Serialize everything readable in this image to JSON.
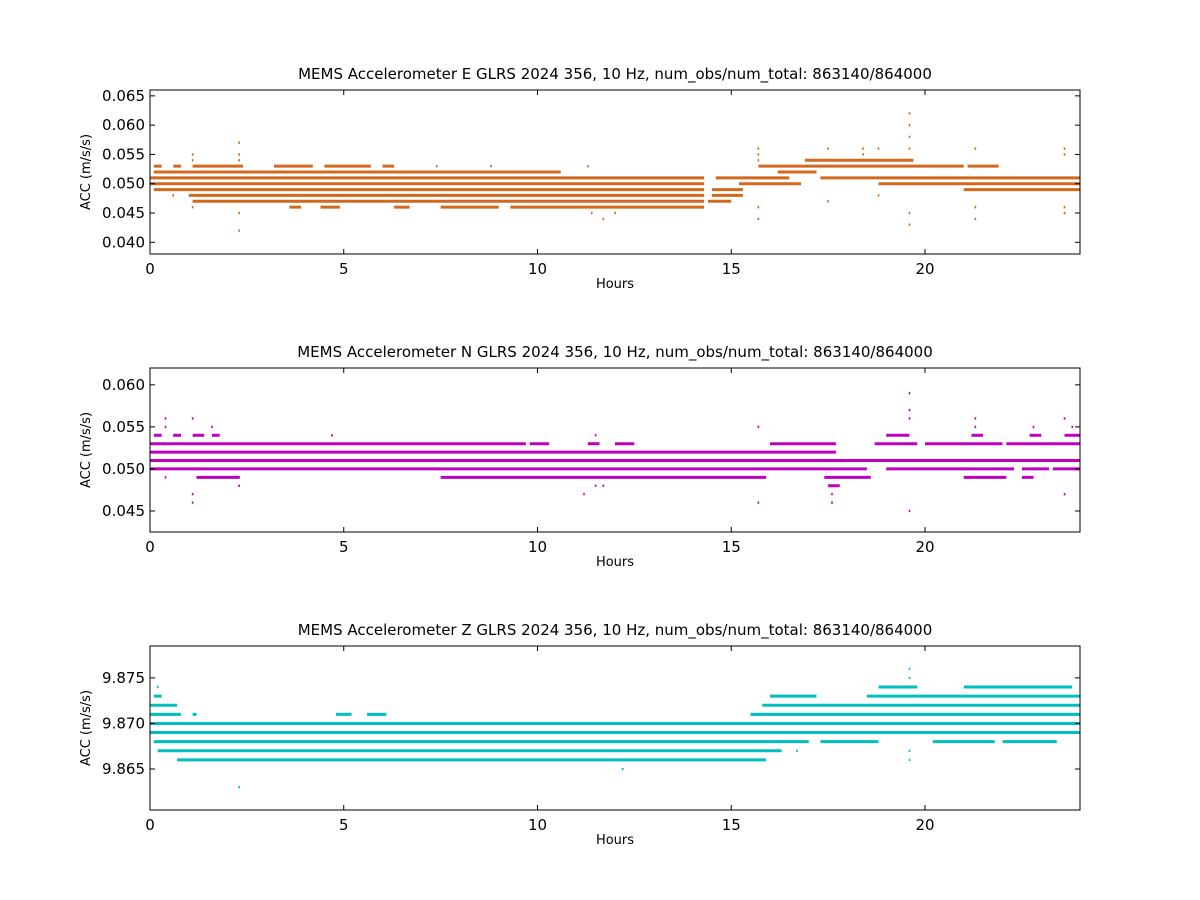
{
  "chart_data": [
    {
      "type": "scatter",
      "title": "MEMS Accelerometer E GLRS 2024 356, 10 Hz, num_obs/num_total: 863140/864000",
      "xlabel": "Hours",
      "ylabel": "ACC (m/s/s)",
      "xlim": [
        0,
        24
      ],
      "ylim": [
        0.038,
        0.066
      ],
      "xticks": [
        0,
        5,
        10,
        15,
        20
      ],
      "xtick_labels": [
        "0",
        "5",
        "10",
        "15",
        "20"
      ],
      "yticks": [
        0.04,
        0.045,
        0.05,
        0.055,
        0.06,
        0.065
      ],
      "ytick_labels": [
        "0.040",
        "0.045",
        "0.050",
        "0.055",
        "0.060",
        "0.065"
      ],
      "color": "#d2691e",
      "grid": false,
      "levels": [
        {
          "y": 0.053,
          "segments": [
            [
              0.1,
              0.3
            ],
            [
              0.6,
              0.8
            ],
            [
              1.1,
              2.4
            ],
            [
              3.2,
              4.2
            ],
            [
              4.5,
              5.7
            ],
            [
              6.0,
              6.3
            ]
          ]
        },
        {
          "y": 0.052,
          "segments": [
            [
              0.1,
              10.6
            ],
            [
              16.2,
              17.2
            ]
          ]
        },
        {
          "y": 0.051,
          "segments": [
            [
              0.0,
              14.3
            ],
            [
              14.6,
              16.5
            ],
            [
              17.3,
              24.0
            ]
          ]
        },
        {
          "y": 0.05,
          "segments": [
            [
              0.0,
              14.3
            ],
            [
              15.2,
              16.8
            ],
            [
              18.8,
              24.0
            ]
          ]
        },
        {
          "y": 0.049,
          "segments": [
            [
              0.1,
              14.3
            ],
            [
              14.5,
              15.3
            ],
            [
              21.0,
              24.0
            ]
          ]
        },
        {
          "y": 0.048,
          "segments": [
            [
              1.0,
              14.3
            ],
            [
              14.5,
              15.3
            ]
          ]
        },
        {
          "y": 0.047,
          "segments": [
            [
              1.1,
              14.3
            ],
            [
              14.4,
              15.0
            ]
          ]
        },
        {
          "y": 0.046,
          "segments": [
            [
              3.6,
              3.9
            ],
            [
              4.4,
              4.9
            ],
            [
              6.3,
              6.7
            ],
            [
              7.5,
              9.0
            ],
            [
              9.3,
              14.3
            ]
          ]
        },
        {
          "y": 0.054,
          "segments": [
            [
              16.9,
              19.7
            ]
          ]
        },
        {
          "y": 0.053,
          "segments": [
            [
              15.7,
              21.0
            ],
            [
              21.1,
              21.9
            ]
          ]
        }
      ],
      "outliers": [
        [
          0.6,
          0.048
        ],
        [
          0.7,
          0.053
        ],
        [
          1.1,
          0.055
        ],
        [
          1.1,
          0.054
        ],
        [
          1.1,
          0.046
        ],
        [
          2.3,
          0.057
        ],
        [
          2.3,
          0.055
        ],
        [
          2.3,
          0.054
        ],
        [
          2.3,
          0.045
        ],
        [
          2.3,
          0.042
        ],
        [
          7.4,
          0.053
        ],
        [
          8.8,
          0.053
        ],
        [
          11.3,
          0.053
        ],
        [
          11.4,
          0.045
        ],
        [
          11.7,
          0.044
        ],
        [
          12.0,
          0.045
        ],
        [
          15.7,
          0.056
        ],
        [
          15.7,
          0.055
        ],
        [
          15.7,
          0.054
        ],
        [
          15.7,
          0.046
        ],
        [
          15.7,
          0.044
        ],
        [
          17.5,
          0.056
        ],
        [
          17.5,
          0.047
        ],
        [
          18.4,
          0.056
        ],
        [
          18.4,
          0.055
        ],
        [
          18.8,
          0.056
        ],
        [
          18.8,
          0.048
        ],
        [
          19.6,
          0.062
        ],
        [
          19.6,
          0.06
        ],
        [
          19.6,
          0.058
        ],
        [
          19.6,
          0.056
        ],
        [
          19.6,
          0.045
        ],
        [
          19.6,
          0.043
        ],
        [
          21.3,
          0.056
        ],
        [
          21.3,
          0.046
        ],
        [
          21.3,
          0.044
        ],
        [
          23.6,
          0.056
        ],
        [
          23.6,
          0.055
        ],
        [
          23.6,
          0.046
        ],
        [
          23.6,
          0.045
        ]
      ]
    },
    {
      "type": "scatter",
      "title": "MEMS Accelerometer N GLRS 2024 356, 10 Hz, num_obs/num_total: 863140/864000",
      "xlabel": "Hours",
      "ylabel": "ACC (m/s/s)",
      "xlim": [
        0,
        24
      ],
      "ylim": [
        0.0425,
        0.062
      ],
      "xticks": [
        0,
        5,
        10,
        15,
        20
      ],
      "xtick_labels": [
        "0",
        "5",
        "10",
        "15",
        "20"
      ],
      "yticks": [
        0.045,
        0.05,
        0.055,
        0.06
      ],
      "ytick_labels": [
        "0.045",
        "0.050",
        "0.055",
        "0.060"
      ],
      "color": "#bf00bf",
      "grid": false,
      "levels": [
        {
          "y": 0.054,
          "segments": [
            [
              0.1,
              0.3
            ],
            [
              0.6,
              0.8
            ],
            [
              1.1,
              1.4
            ],
            [
              1.6,
              1.8
            ],
            [
              19.0,
              19.6
            ],
            [
              21.2,
              21.5
            ],
            [
              22.7,
              23.0
            ],
            [
              23.6,
              24.0
            ]
          ]
        },
        {
          "y": 0.053,
          "segments": [
            [
              0.0,
              9.7
            ],
            [
              9.8,
              10.3
            ],
            [
              11.3,
              11.6
            ],
            [
              12.0,
              12.5
            ],
            [
              16.0,
              17.7
            ],
            [
              18.7,
              19.8
            ],
            [
              20.0,
              22.0
            ],
            [
              22.1,
              24.0
            ]
          ]
        },
        {
          "y": 0.052,
          "segments": [
            [
              0.0,
              17.7
            ]
          ]
        },
        {
          "y": 0.051,
          "segments": [
            [
              0.0,
              24.0
            ]
          ]
        },
        {
          "y": 0.05,
          "segments": [
            [
              0.0,
              18.5
            ],
            [
              19.0,
              22.3
            ],
            [
              22.5,
              23.2
            ],
            [
              23.3,
              24.0
            ]
          ]
        },
        {
          "y": 0.049,
          "segments": [
            [
              1.2,
              2.3
            ],
            [
              7.5,
              15.9
            ],
            [
              17.4,
              18.6
            ],
            [
              21.0,
              22.1
            ],
            [
              22.5,
              22.8
            ]
          ]
        },
        {
          "y": 0.048,
          "segments": [
            [
              17.5,
              17.8
            ]
          ]
        }
      ],
      "outliers": [
        [
          0.4,
          0.056
        ],
        [
          0.4,
          0.055
        ],
        [
          0.4,
          0.049
        ],
        [
          1.1,
          0.056
        ],
        [
          1.1,
          0.047
        ],
        [
          1.1,
          0.046
        ],
        [
          1.6,
          0.055
        ],
        [
          2.3,
          0.049
        ],
        [
          2.3,
          0.048
        ],
        [
          4.7,
          0.054
        ],
        [
          11.2,
          0.047
        ],
        [
          11.5,
          0.054
        ],
        [
          11.5,
          0.048
        ],
        [
          11.7,
          0.048
        ],
        [
          15.7,
          0.055
        ],
        [
          15.7,
          0.046
        ],
        [
          17.6,
          0.047
        ],
        [
          17.6,
          0.046
        ],
        [
          19.6,
          0.059
        ],
        [
          19.6,
          0.057
        ],
        [
          19.6,
          0.056
        ],
        [
          19.6,
          0.045
        ],
        [
          21.3,
          0.056
        ],
        [
          21.3,
          0.055
        ],
        [
          22.8,
          0.055
        ],
        [
          23.6,
          0.056
        ],
        [
          23.6,
          0.047
        ],
        [
          23.8,
          0.055
        ]
      ]
    },
    {
      "type": "scatter",
      "title": "MEMS Accelerometer Z GLRS 2024 356, 10 Hz, num_obs/num_total: 863140/864000",
      "xlabel": "Hours",
      "ylabel": "ACC (m/s/s)",
      "xlim": [
        0,
        24
      ],
      "ylim": [
        9.8605,
        9.8785
      ],
      "xticks": [
        0,
        5,
        10,
        15,
        20
      ],
      "xtick_labels": [
        "0",
        "5",
        "10",
        "15",
        "20"
      ],
      "yticks": [
        9.865,
        9.87,
        9.875
      ],
      "ytick_labels": [
        "9.865",
        "9.870",
        "9.875"
      ],
      "color": "#00bfbf",
      "grid": false,
      "levels": [
        {
          "y": 9.874,
          "segments": [
            [
              18.8,
              19.8
            ],
            [
              21.0,
              23.8
            ]
          ]
        },
        {
          "y": 9.873,
          "segments": [
            [
              0.1,
              0.3
            ],
            [
              16.0,
              17.2
            ],
            [
              18.5,
              24.0
            ]
          ]
        },
        {
          "y": 9.872,
          "segments": [
            [
              0.0,
              0.7
            ],
            [
              15.8,
              24.0
            ]
          ]
        },
        {
          "y": 9.871,
          "segments": [
            [
              0.0,
              0.8
            ],
            [
              1.1,
              1.2
            ],
            [
              4.8,
              5.2
            ],
            [
              5.6,
              6.1
            ],
            [
              15.5,
              24.0
            ]
          ]
        },
        {
          "y": 9.87,
          "segments": [
            [
              0.0,
              24.0
            ]
          ]
        },
        {
          "y": 9.869,
          "segments": [
            [
              0.0,
              24.0
            ]
          ]
        },
        {
          "y": 9.868,
          "segments": [
            [
              0.1,
              17.0
            ],
            [
              17.3,
              18.8
            ],
            [
              20.2,
              21.8
            ],
            [
              22.0,
              23.4
            ]
          ]
        },
        {
          "y": 9.867,
          "segments": [
            [
              0.2,
              16.3
            ]
          ]
        },
        {
          "y": 9.866,
          "segments": [
            [
              0.7,
              15.9
            ]
          ]
        }
      ],
      "outliers": [
        [
          0.2,
          9.874
        ],
        [
          2.3,
          9.863
        ],
        [
          12.2,
          9.865
        ],
        [
          19.6,
          9.876
        ],
        [
          19.6,
          9.875
        ],
        [
          19.6,
          9.867
        ],
        [
          19.6,
          9.866
        ],
        [
          17.6,
          9.868
        ],
        [
          16.7,
          9.867
        ]
      ]
    }
  ]
}
